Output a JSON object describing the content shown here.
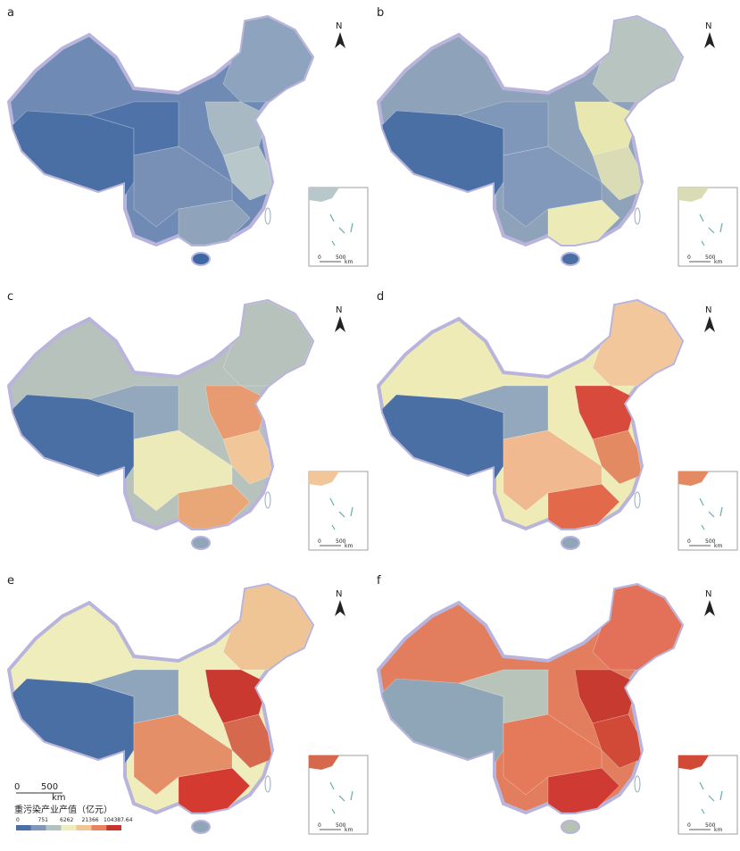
{
  "panels": [
    {
      "label": "a",
      "fills": [
        "#6f8bb5",
        "#4a6fa5",
        "#4f73a8",
        "#8ea3bd",
        "#a9b9c4",
        "#b8c7c9",
        "#8fa3bb",
        "#7890b6",
        "#3e68a3"
      ]
    },
    {
      "label": "b",
      "fills": [
        "#8ea2b9",
        "#4a6fa5",
        "#7f98b9",
        "#b8c4c0",
        "#e9e7b0",
        "#d9dcb5",
        "#ecebb8",
        "#8299bb",
        "#4a6fa5"
      ]
    },
    {
      "label": "c",
      "fills": [
        "#b7c2bd",
        "#4a6fa5",
        "#93a8bd",
        "#b7c2bd",
        "#e89b70",
        "#f1c79a",
        "#e9a677",
        "#eceab8",
        "#8fa6b8"
      ]
    },
    {
      "label": "d",
      "fills": [
        "#eeebb6",
        "#4a6fa5",
        "#93a8bd",
        "#f2c79b",
        "#d74a3c",
        "#e48a62",
        "#e26a4a",
        "#f0b98f",
        "#8fa6b8"
      ]
    },
    {
      "label": "e",
      "fills": [
        "#efedbb",
        "#4a6fa5",
        "#8fa5bb",
        "#f0c596",
        "#c9392f",
        "#d6684e",
        "#d53a30",
        "#e48f68",
        "#8fa6b8"
      ]
    },
    {
      "label": "f",
      "fills": [
        "#e27d5d",
        "#8fa5b8",
        "#b8c4b9",
        "#e37058",
        "#c73a30",
        "#d14a38",
        "#cf3b32",
        "#e47a5a",
        "#b7c2b3"
      ]
    }
  ],
  "north_label": "N",
  "inset_scale": {
    "zero": "0",
    "mid": "500",
    "unit": "km"
  },
  "legend": {
    "scale": {
      "zero": "0",
      "mid": "500",
      "unit": "km"
    },
    "title": "重污染产业产值（亿元）",
    "labels": [
      "0",
      "751",
      "6262",
      "21366",
      "104387.64"
    ],
    "colors": [
      "#4a6fa5",
      "#7f98b9",
      "#b3c1c3",
      "#efedbb",
      "#f3c494",
      "#e8835f",
      "#c8332d"
    ]
  }
}
